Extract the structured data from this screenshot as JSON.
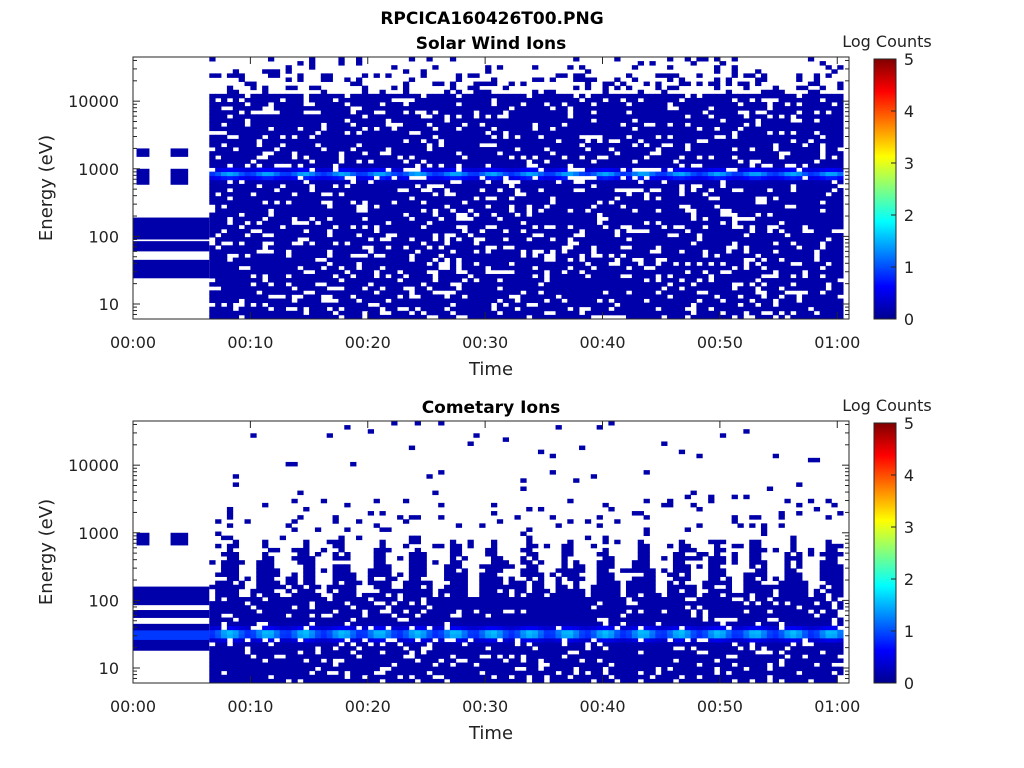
{
  "figure_title": "RPCICA160426T00.PNG",
  "chart_data": [
    {
      "type": "heatmap",
      "title": "Solar Wind Ions",
      "xlabel": "Time",
      "ylabel": "Energy (eV)",
      "x_ticks": [
        "00:00",
        "00:10",
        "00:20",
        "00:30",
        "00:40",
        "00:50",
        "01:00"
      ],
      "x_range_minutes": [
        0,
        61
      ],
      "y_scale": "log",
      "y_ticks": [
        "10",
        "100",
        "1000",
        "10000"
      ],
      "y_range": [
        6,
        45000
      ],
      "colorbar_label": "Log Counts",
      "colorbar_ticks": [
        "0",
        "1",
        "2",
        "3",
        "4",
        "5"
      ],
      "colorbar_range": [
        0,
        5
      ],
      "colormap": [
        "#00008f",
        "#0000ff",
        "#0080ff",
        "#00ffff",
        "#80ff80",
        "#ffff00",
        "#ff8000",
        "#ff0000",
        "#800000"
      ],
      "data_start_minute": 6.5,
      "peak_energy": 780,
      "peak_level": 1.3,
      "background_level": 0.15
    },
    {
      "type": "heatmap",
      "title": "Cometary Ions",
      "xlabel": "Time",
      "ylabel": "Energy (eV)",
      "x_ticks": [
        "00:00",
        "00:10",
        "00:20",
        "00:30",
        "00:40",
        "00:50",
        "01:00"
      ],
      "x_range_minutes": [
        0,
        61
      ],
      "y_scale": "log",
      "y_ticks": [
        "10",
        "100",
        "1000",
        "10000"
      ],
      "y_range": [
        6,
        45000
      ],
      "colorbar_label": "Log Counts",
      "colorbar_ticks": [
        "0",
        "1",
        "2",
        "3",
        "4",
        "5"
      ],
      "colorbar_range": [
        0,
        5
      ],
      "colormap": [
        "#00008f",
        "#0000ff",
        "#0080ff",
        "#00ffff",
        "#80ff80",
        "#ffff00",
        "#ff8000",
        "#ff0000",
        "#800000"
      ],
      "data_start_minute": 6.5,
      "peak_energy": 30,
      "peak_level": 1.6,
      "background_level": 0.15
    }
  ]
}
